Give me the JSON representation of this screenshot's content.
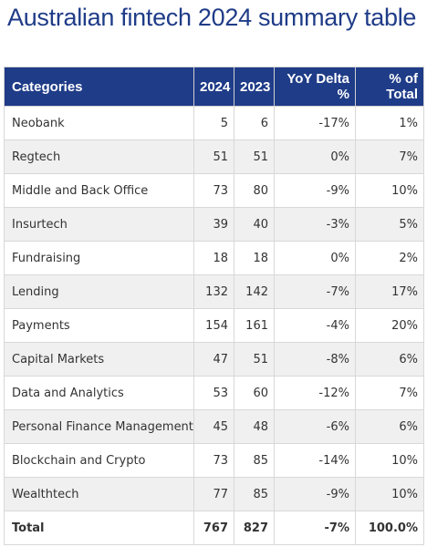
{
  "title": "Australian fintech 2024 summary table",
  "table": {
    "header": [
      "Categories",
      "2024",
      "2023",
      "YoY Delta %",
      "% of Total"
    ],
    "rows": [
      [
        "Neobank",
        "5",
        "6",
        "-17%",
        "1%"
      ],
      [
        "Regtech",
        "51",
        "51",
        "0%",
        "7%"
      ],
      [
        "Middle and Back Office",
        "73",
        "80",
        "-9%",
        "10%"
      ],
      [
        "Insurtech",
        "39",
        "40",
        "-3%",
        "5%"
      ],
      [
        "Fundraising",
        "18",
        "18",
        "0%",
        "2%"
      ],
      [
        "Lending",
        "132",
        "142",
        "-7%",
        "17%"
      ],
      [
        "Payments",
        "154",
        "161",
        "-4%",
        "20%"
      ],
      [
        "Capital Markets",
        "47",
        "51",
        "-8%",
        "6%"
      ],
      [
        "Data and Analytics",
        "53",
        "60",
        "-12%",
        "7%"
      ],
      [
        "Personal Finance Management",
        "45",
        "48",
        "-6%",
        "6%"
      ],
      [
        "Blockchain and Crypto",
        "73",
        "85",
        "-14%",
        "10%"
      ],
      [
        "Wealthtech",
        "77",
        "85",
        "-9%",
        "10%"
      ]
    ],
    "total": [
      "Total",
      "767",
      "827",
      "-7%",
      "100.0%"
    ]
  }
}
